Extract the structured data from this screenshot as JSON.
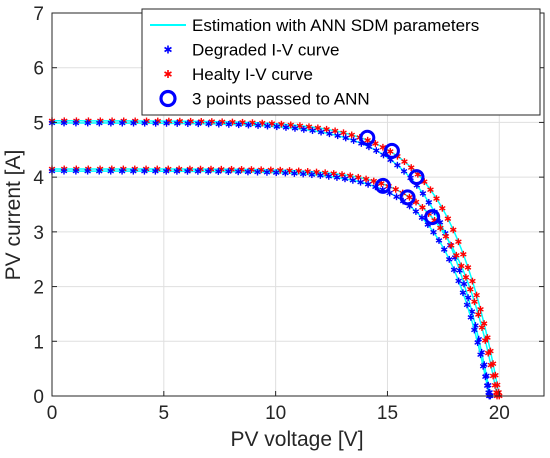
{
  "chart_data": {
    "type": "scatter",
    "xlabel": "PV voltage [V]",
    "ylabel": "PV current [A]",
    "xlim": [
      0,
      22
    ],
    "ylim": [
      0,
      7
    ],
    "xticks": [
      0,
      5,
      10,
      15,
      20
    ],
    "yticks": [
      0,
      1,
      2,
      3,
      4,
      5,
      6,
      7
    ],
    "grid": true,
    "legend_position": "top-right",
    "colors": {
      "estimation": "#00ffff",
      "degraded": "#0000ff",
      "healthy": "#ff0000",
      "ann_points": "#0000ff",
      "axis": "#262626",
      "grid": "#dfdfdf"
    },
    "legend": [
      {
        "label": "Estimation with ANN SDM parameters",
        "marker": "line",
        "color": "#00ffff"
      },
      {
        "label": "Degraded I-V curve",
        "marker": "asterisk",
        "color": "#0000ff"
      },
      {
        "label": "Healty I-V curve",
        "marker": "asterisk",
        "color": "#ff0000"
      },
      {
        "label": "3 points passed to ANN",
        "marker": "circle",
        "color": "#0000ff"
      }
    ],
    "curves": [
      {
        "isc": 5.03,
        "voc": 20.0,
        "vmp": 15.0,
        "imp": 4.5,
        "voc_degraded": 19.6
      },
      {
        "isc": 4.15,
        "voc": 19.9,
        "vmp": 15.5,
        "imp": 3.75,
        "voc_degraded": 19.55
      }
    ],
    "ann_points": [
      {
        "x": 14.1,
        "y": 4.72
      },
      {
        "x": 15.2,
        "y": 4.48
      },
      {
        "x": 16.3,
        "y": 4.0
      },
      {
        "x": 14.8,
        "y": 3.84
      },
      {
        "x": 15.9,
        "y": 3.63
      },
      {
        "x": 17.0,
        "y": 3.27
      }
    ]
  }
}
